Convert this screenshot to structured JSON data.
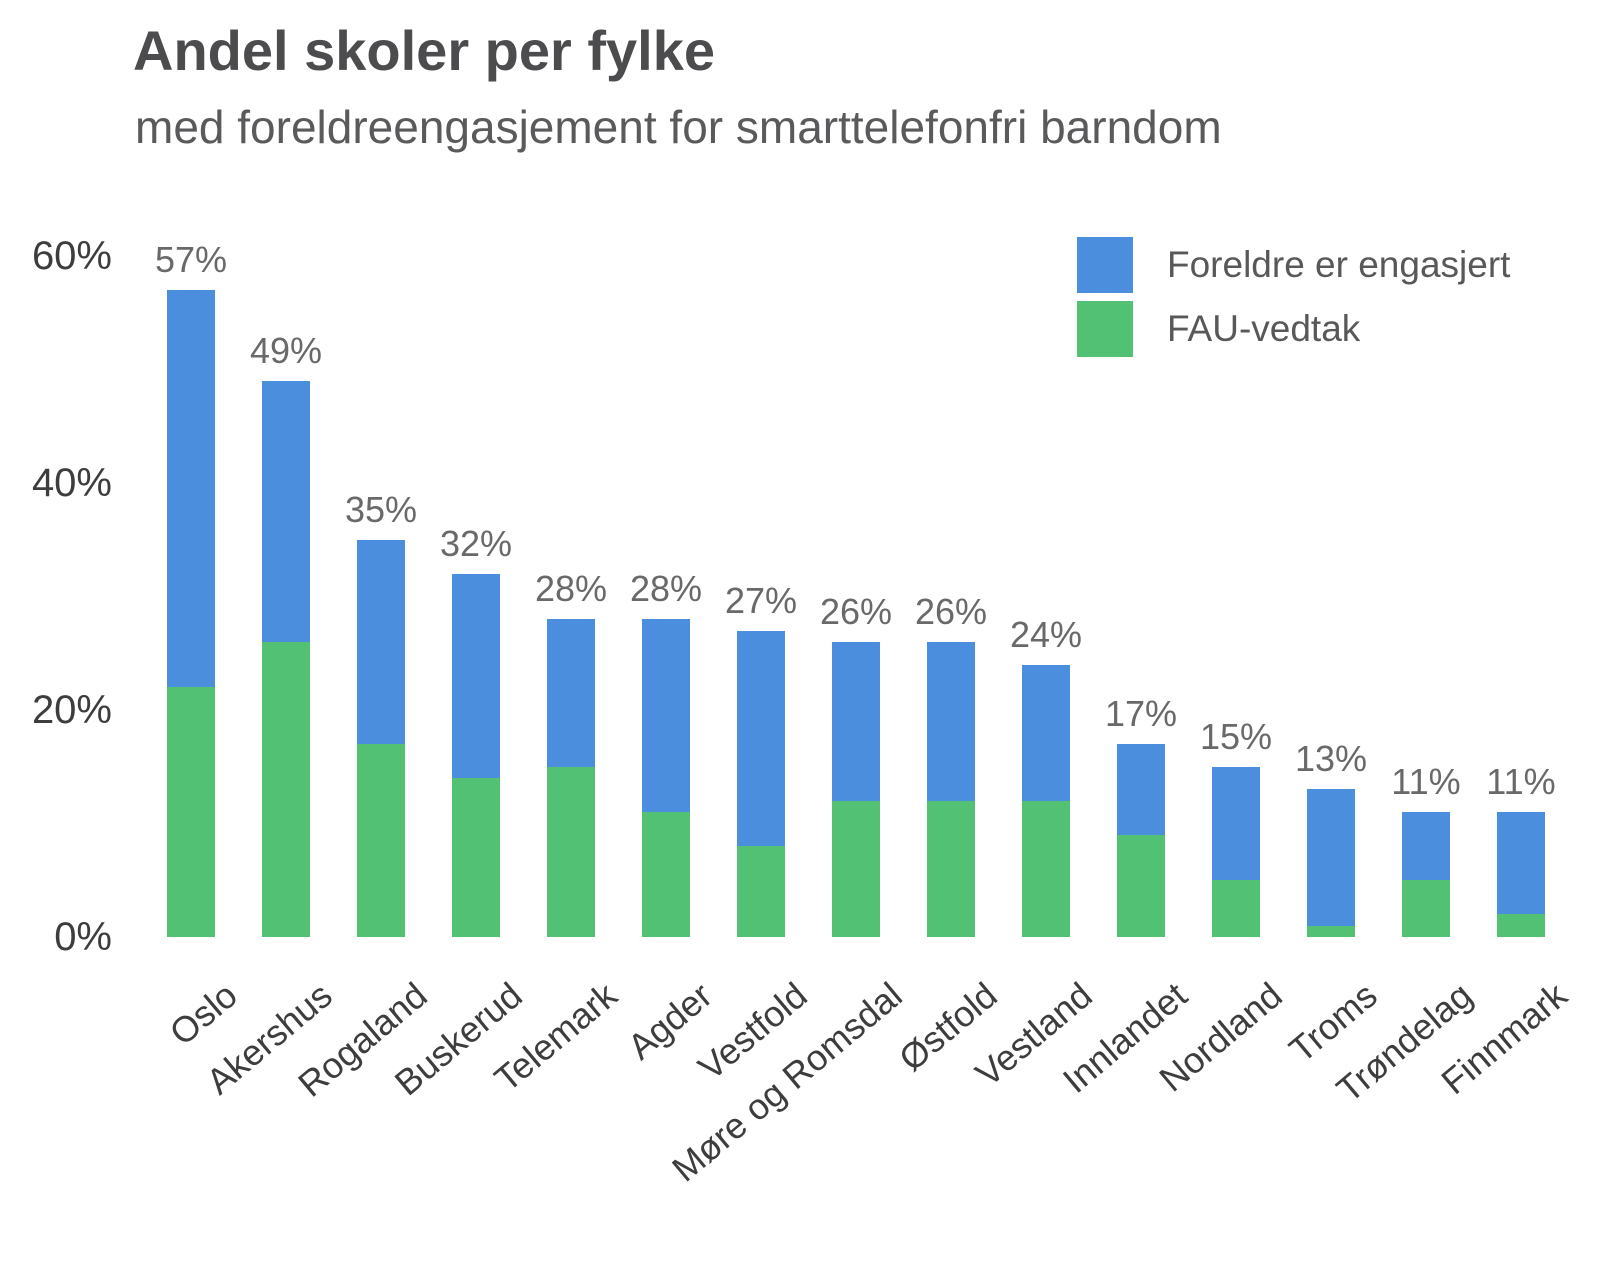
{
  "title": "Andel skoler per fylke",
  "subtitle": "med foreldreengasjement for smarttelefonfri barndom",
  "colors": {
    "engaged_blue": "#4a8edd",
    "fau_green": "#52c173",
    "title_text": "#4c4c4e",
    "subtitle_text": "#5a5a5c",
    "axis_text": "#3d3d3f",
    "value_label_text": "#69696b",
    "background": "#ffffff"
  },
  "legend": {
    "items": [
      {
        "label": "Foreldre er engasjert",
        "color": "#4a8edd",
        "series_key": "foreldre"
      },
      {
        "label": "FAU-vedtak",
        "color": "#52c173",
        "series_key": "fau"
      }
    ],
    "position": "top-right"
  },
  "chart_data": {
    "type": "bar",
    "stacked": true,
    "grid": false,
    "title": "Andel skoler per fylke",
    "subtitle": "med foreldreengasjement for smarttelefonfri barndom",
    "xlabel": "",
    "ylabel": "",
    "ylim": [
      0,
      60
    ],
    "yticks": [
      {
        "value": 0,
        "label": "0%"
      },
      {
        "value": 20,
        "label": "20%"
      },
      {
        "value": 40,
        "label": "40%"
      },
      {
        "value": 60,
        "label": "60%"
      }
    ],
    "categories": [
      "Oslo",
      "Akershus",
      "Rogaland",
      "Buskerud",
      "Telemark",
      "Agder",
      "Vestfold",
      "Møre og Romsdal",
      "Østfold",
      "Vestland",
      "Innlandet",
      "Nordland",
      "Troms",
      "Trøndelag",
      "Finnmark"
    ],
    "series": [
      {
        "name": "FAU-vedtak",
        "key": "fau",
        "color": "#52c173",
        "stack_order": "bottom",
        "values": [
          22,
          26,
          17,
          14,
          15,
          11,
          8,
          12,
          12,
          12,
          9,
          5,
          1,
          5,
          2
        ]
      },
      {
        "name": "Foreldre er engasjert",
        "key": "foreldre",
        "color": "#4a8edd",
        "stack_order": "top",
        "values": [
          35,
          23,
          18,
          18,
          13,
          17,
          19,
          14,
          14,
          12,
          8,
          10,
          12,
          6,
          9
        ]
      }
    ],
    "totals": [
      57,
      49,
      35,
      32,
      28,
      28,
      27,
      26,
      26,
      24,
      17,
      15,
      13,
      11,
      11
    ],
    "total_labels": [
      "57%",
      "49%",
      "35%",
      "32%",
      "28%",
      "28%",
      "27%",
      "26%",
      "26%",
      "24%",
      "17%",
      "15%",
      "13%",
      "11%",
      "11%"
    ]
  }
}
